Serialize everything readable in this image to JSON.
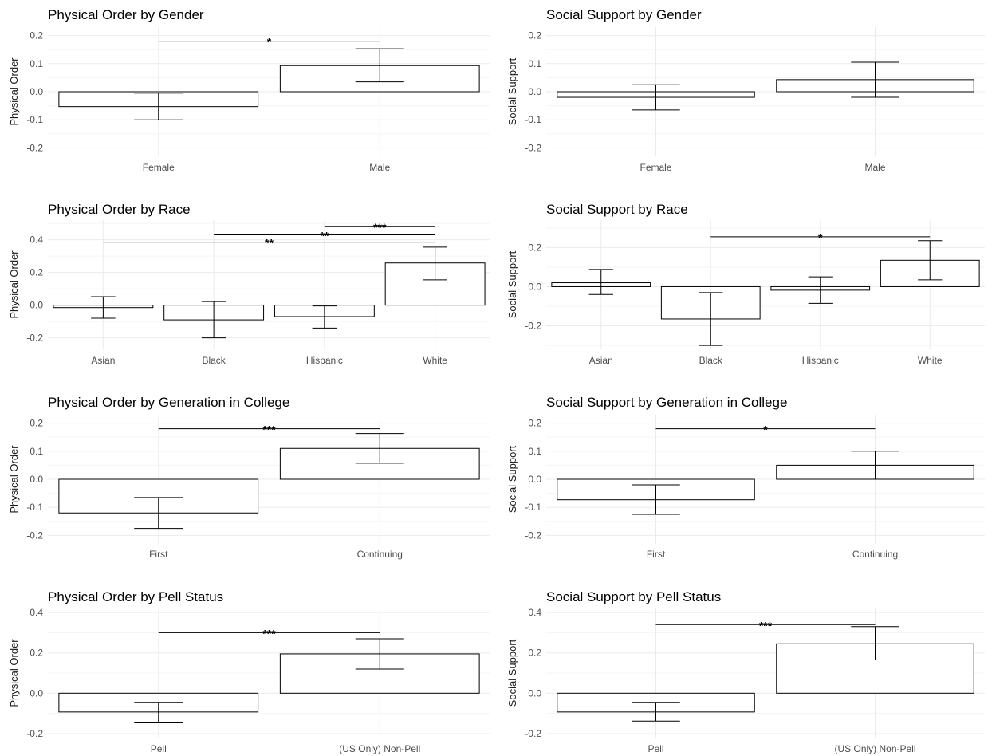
{
  "chart_data": [
    {
      "type": "bar",
      "title": "Physical Order by Gender",
      "ylabel": "Physical Order",
      "categories": [
        "Female",
        "Male"
      ],
      "values": [
        -0.053,
        0.093
      ],
      "error_low": [
        -0.1,
        0.035
      ],
      "error_high": [
        -0.005,
        0.153
      ],
      "ylim": [
        -0.23,
        0.23
      ],
      "yticks": [
        -0.2,
        -0.1,
        0.0,
        0.1,
        0.2
      ],
      "ytick_labels": [
        "-0.2",
        "-0.1",
        "0.0",
        "0.1",
        "0.2"
      ],
      "grid": true,
      "significance": [
        {
          "from": "Female",
          "to": "Male",
          "y": 0.18,
          "label": "*"
        }
      ]
    },
    {
      "type": "bar",
      "title": "Social Support by Gender",
      "ylabel": "Social Support",
      "categories": [
        "Female",
        "Male"
      ],
      "values": [
        -0.02,
        0.043
      ],
      "error_low": [
        -0.065,
        -0.02
      ],
      "error_high": [
        0.025,
        0.105
      ],
      "ylim": [
        -0.23,
        0.23
      ],
      "yticks": [
        -0.2,
        -0.1,
        0.0,
        0.1,
        0.2
      ],
      "ytick_labels": [
        "-0.2",
        "-0.1",
        "0.0",
        "0.1",
        "0.2"
      ],
      "grid": true,
      "significance": []
    },
    {
      "type": "bar",
      "title": "Physical Order by Race",
      "ylabel": "Physical Order",
      "categories": [
        "Asian",
        "Black",
        "Hispanic",
        "White"
      ],
      "values": [
        -0.015,
        -0.09,
        -0.07,
        0.258
      ],
      "error_low": [
        -0.08,
        -0.2,
        -0.14,
        0.155
      ],
      "error_high": [
        0.052,
        0.022,
        -0.005,
        0.355
      ],
      "ylim": [
        -0.27,
        0.52
      ],
      "yticks": [
        -0.2,
        0.0,
        0.2,
        0.4
      ],
      "ytick_labels": [
        "-0.2",
        "0.0",
        "0.2",
        "0.4"
      ],
      "grid": true,
      "significance": [
        {
          "from": "Asian",
          "to": "White",
          "y": 0.385,
          "label": "**"
        },
        {
          "from": "Black",
          "to": "White",
          "y": 0.43,
          "label": "**"
        },
        {
          "from": "Hispanic",
          "to": "White",
          "y": 0.48,
          "label": "***"
        }
      ]
    },
    {
      "type": "bar",
      "title": "Social Support by Race",
      "ylabel": "Social Support",
      "categories": [
        "Asian",
        "Black",
        "Hispanic",
        "White"
      ],
      "values": [
        0.02,
        -0.165,
        -0.018,
        0.135
      ],
      "error_low": [
        -0.04,
        -0.3,
        -0.085,
        0.035
      ],
      "error_high": [
        0.088,
        -0.03,
        0.05,
        0.235
      ],
      "ylim": [
        -0.32,
        0.34
      ],
      "yticks": [
        -0.2,
        0.0,
        0.2
      ],
      "ytick_labels": [
        "-0.2",
        "0.0",
        "0.2"
      ],
      "grid": true,
      "significance": [
        {
          "from": "Black",
          "to": "White",
          "y": 0.255,
          "label": "*"
        }
      ]
    },
    {
      "type": "bar",
      "title": "Physical Order by Generation in College",
      "ylabel": "Physical Order",
      "categories": [
        "First",
        "Continuing"
      ],
      "values": [
        -0.12,
        0.11
      ],
      "error_low": [
        -0.175,
        0.057
      ],
      "error_high": [
        -0.065,
        0.163
      ],
      "ylim": [
        -0.23,
        0.23
      ],
      "yticks": [
        -0.2,
        -0.1,
        0.0,
        0.1,
        0.2
      ],
      "ytick_labels": [
        "-0.2",
        "-0.1",
        "0.0",
        "0.1",
        "0.2"
      ],
      "grid": true,
      "significance": [
        {
          "from": "First",
          "to": "Continuing",
          "y": 0.18,
          "label": "***"
        }
      ]
    },
    {
      "type": "bar",
      "title": "Social Support by Generation in College",
      "ylabel": "Social Support",
      "categories": [
        "First",
        "Continuing"
      ],
      "values": [
        -0.073,
        0.05
      ],
      "error_low": [
        -0.125,
        0.0
      ],
      "error_high": [
        -0.02,
        0.1
      ],
      "ylim": [
        -0.23,
        0.23
      ],
      "yticks": [
        -0.2,
        -0.1,
        0.0,
        0.1,
        0.2
      ],
      "ytick_labels": [
        "-0.2",
        "-0.1",
        "0.0",
        "0.1",
        "0.2"
      ],
      "grid": true,
      "significance": [
        {
          "from": "First",
          "to": "Continuing",
          "y": 0.18,
          "label": "*"
        }
      ]
    },
    {
      "type": "bar",
      "title": "Physical Order by Pell Status",
      "ylabel": "Physical Order",
      "categories": [
        "Pell",
        "(US Only) Non-Pell"
      ],
      "values": [
        -0.093,
        0.195
      ],
      "error_low": [
        -0.143,
        0.12
      ],
      "error_high": [
        -0.045,
        0.27
      ],
      "ylim": [
        -0.22,
        0.42
      ],
      "yticks": [
        -0.2,
        0.0,
        0.2,
        0.4
      ],
      "ytick_labels": [
        "-0.2",
        "0.0",
        "0.2",
        "0.4"
      ],
      "grid": true,
      "significance": [
        {
          "from": "Pell",
          "to": "(US Only) Non-Pell",
          "y": 0.3,
          "label": "***"
        }
      ]
    },
    {
      "type": "bar",
      "title": "Social Support by Pell Status",
      "ylabel": "Social Support",
      "categories": [
        "Pell",
        "(US Only) Non-Pell"
      ],
      "values": [
        -0.093,
        0.245
      ],
      "error_low": [
        -0.138,
        0.165
      ],
      "error_high": [
        -0.045,
        0.33
      ],
      "ylim": [
        -0.22,
        0.42
      ],
      "yticks": [
        -0.2,
        0.0,
        0.2,
        0.4
      ],
      "ytick_labels": [
        "-0.2",
        "0.0",
        "0.2",
        "0.4"
      ],
      "grid": true,
      "significance": [
        {
          "from": "Pell",
          "to": "(US Only) Non-Pell",
          "y": 0.34,
          "label": "***"
        }
      ]
    }
  ]
}
